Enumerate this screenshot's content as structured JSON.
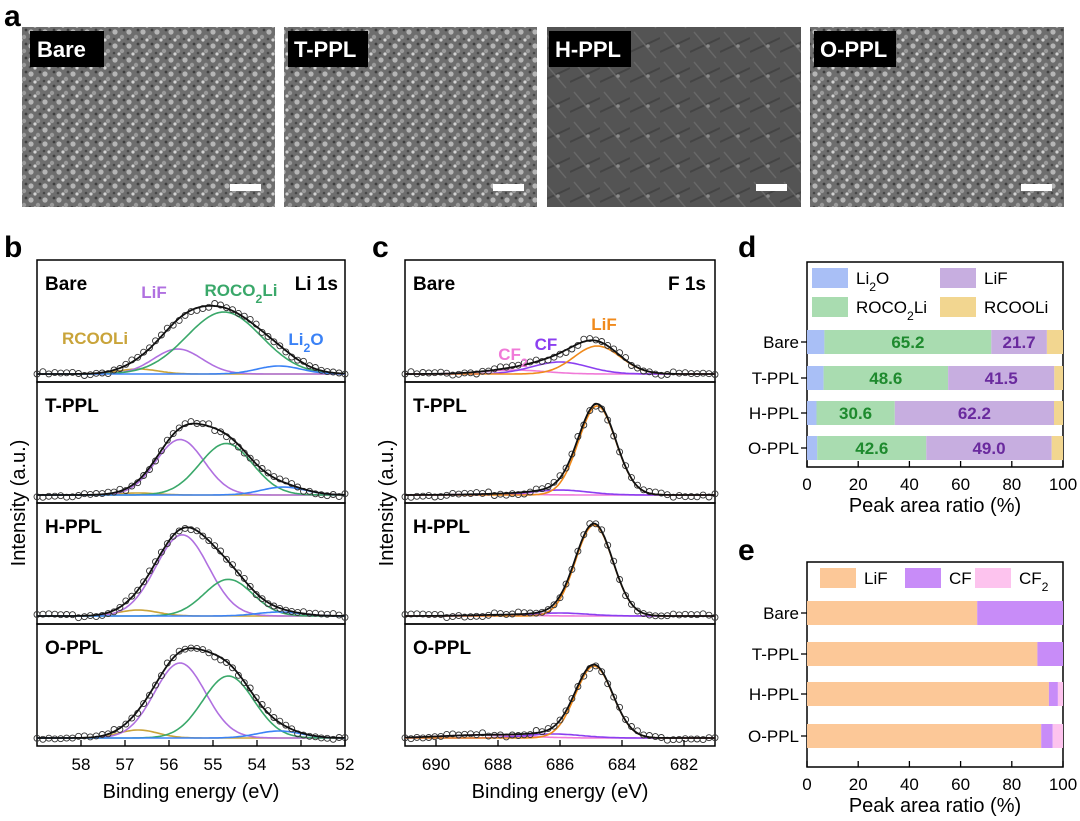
{
  "panel_letters": {
    "a": "a",
    "b": "b",
    "c": "c",
    "d": "d",
    "e": "e"
  },
  "sem_labels": [
    "Bare",
    "T-PPL",
    "H-PPL",
    "O-PPL"
  ],
  "colors": {
    "li2o": "#3b82f6",
    "rcooli": "#c9a43a",
    "liF_purple": "#b070e0",
    "roco2li": "#3aa86a",
    "liF_orange": "#f08a1c",
    "cf": "#8b3ff0",
    "cf2": "#f07ad8",
    "fit": "#111111",
    "bar_li2o": "#a9bff6",
    "bar_roco2li": "#a9dcb0",
    "bar_lif_d": "#c7aee0",
    "bar_rcooli": "#f2d690",
    "bar_lif_e": "#fcc898",
    "bar_cf": "#c88cf8",
    "bar_cf2": "#fdc3ee",
    "text_green": "#1e8a2e",
    "text_purple": "#6a2a9e"
  },
  "chart_data": [
    {
      "type": "line",
      "panel": "b",
      "title": "Li 1s",
      "xlabel": "Binding energy (eV)",
      "ylabel": "Intensity (a.u.)",
      "x_ticks": [
        "58",
        "57",
        "56",
        "55",
        "54",
        "53",
        "52"
      ],
      "xlim": [
        59,
        52
      ],
      "x_reversed": true,
      "peak_labels": [
        "LiF",
        "ROCO₂Li",
        "RCOOLi",
        "Li₂O"
      ],
      "subplots": [
        {
          "sample": "Bare",
          "peaks": [
            {
              "name": "RCOOLi",
              "center": 56.7,
              "height": 0.05,
              "width": 0.45
            },
            {
              "name": "LiF",
              "center": 55.8,
              "height": 0.25,
              "width": 0.55
            },
            {
              "name": "ROCO₂Li",
              "center": 54.75,
              "height": 0.62,
              "width": 0.85
            },
            {
              "name": "Li₂O",
              "center": 53.5,
              "height": 0.08,
              "width": 0.5
            }
          ]
        },
        {
          "sample": "T-PPL",
          "peaks": [
            {
              "name": "RCOOLi",
              "center": 56.7,
              "height": 0.02,
              "width": 0.45
            },
            {
              "name": "LiF",
              "center": 55.75,
              "height": 0.56,
              "width": 0.55
            },
            {
              "name": "ROCO₂Li",
              "center": 54.7,
              "height": 0.52,
              "width": 0.6
            },
            {
              "name": "Li₂O",
              "center": 53.4,
              "height": 0.08,
              "width": 0.5
            }
          ]
        },
        {
          "sample": "H-PPL",
          "peaks": [
            {
              "name": "RCOOLi",
              "center": 56.7,
              "height": 0.06,
              "width": 0.45
            },
            {
              "name": "LiF",
              "center": 55.7,
              "height": 0.82,
              "width": 0.6
            },
            {
              "name": "ROCO₂Li",
              "center": 54.65,
              "height": 0.37,
              "width": 0.55
            },
            {
              "name": "Li₂O",
              "center": 53.5,
              "height": 0.04,
              "width": 0.5
            }
          ]
        },
        {
          "sample": "O-PPL",
          "peaks": [
            {
              "name": "RCOOLi",
              "center": 56.7,
              "height": 0.08,
              "width": 0.45
            },
            {
              "name": "LiF",
              "center": 55.75,
              "height": 0.75,
              "width": 0.58
            },
            {
              "name": "ROCO₂Li",
              "center": 54.65,
              "height": 0.62,
              "width": 0.58
            },
            {
              "name": "Li₂O",
              "center": 53.5,
              "height": 0.07,
              "width": 0.5
            }
          ]
        }
      ]
    },
    {
      "type": "line",
      "panel": "c",
      "title": "F 1s",
      "xlabel": "Binding energy (eV)",
      "ylabel": "Intensity (a.u.)",
      "x_ticks": [
        "690",
        "688",
        "686",
        "684",
        "682"
      ],
      "xlim": [
        691,
        681
      ],
      "x_reversed": true,
      "peak_labels": [
        "CF₂",
        "CF",
        "LiF"
      ],
      "subplots": [
        {
          "sample": "Bare",
          "peaks": [
            {
              "name": "CF₂",
              "center": 687.5,
              "height": 0.04,
              "width": 1.0
            },
            {
              "name": "CF",
              "center": 686.0,
              "height": 0.12,
              "width": 0.9
            },
            {
              "name": "LiF",
              "center": 684.8,
              "height": 0.28,
              "width": 0.75
            }
          ]
        },
        {
          "sample": "T-PPL",
          "peaks": [
            {
              "name": "CF₂",
              "center": 688.0,
              "height": 0.01,
              "width": 1.0
            },
            {
              "name": "CF",
              "center": 686.0,
              "height": 0.05,
              "width": 0.9
            },
            {
              "name": "LiF",
              "center": 684.8,
              "height": 0.9,
              "width": 0.6
            }
          ]
        },
        {
          "sample": "H-PPL",
          "peaks": [
            {
              "name": "CF₂",
              "center": 688.0,
              "height": 0.01,
              "width": 1.0
            },
            {
              "name": "CF",
              "center": 686.0,
              "height": 0.03,
              "width": 0.9
            },
            {
              "name": "LiF",
              "center": 684.9,
              "height": 0.92,
              "width": 0.6
            }
          ]
        },
        {
          "sample": "O-PPL",
          "peaks": [
            {
              "name": "CF₂",
              "center": 688.5,
              "height": 0.03,
              "width": 1.3
            },
            {
              "name": "CF",
              "center": 686.2,
              "height": 0.04,
              "width": 0.9
            },
            {
              "name": "LiF",
              "center": 684.9,
              "height": 0.72,
              "width": 0.6
            }
          ]
        }
      ]
    },
    {
      "type": "bar",
      "panel": "d",
      "orientation": "horizontal",
      "stacked": true,
      "xlabel": "Peak area ratio (%)",
      "x_ticks": [
        "0",
        "20",
        "40",
        "60",
        "80",
        "100"
      ],
      "xlim": [
        0,
        100
      ],
      "categories": [
        "Bare",
        "T-PPL",
        "H-PPL",
        "O-PPL"
      ],
      "legend": [
        "Li₂O",
        "LiF",
        "ROCO₂Li",
        "RCOOLi"
      ],
      "series": [
        {
          "name": "Li₂O",
          "values": [
            6.8,
            6.5,
            3.7,
            4.0
          ]
        },
        {
          "name": "ROCO₂Li",
          "values": [
            65.2,
            48.6,
            30.6,
            42.6
          ]
        },
        {
          "name": "LiF",
          "values": [
            21.7,
            41.5,
            62.2,
            49.0
          ]
        },
        {
          "name": "RCOOLi",
          "values": [
            6.3,
            3.4,
            3.5,
            4.4
          ]
        }
      ],
      "data_labels": {
        "ROCO₂Li": [
          "65.2",
          "48.6",
          "30.6",
          "42.6"
        ],
        "LiF": [
          "21.7",
          "41.5",
          "62.2",
          "49.0"
        ]
      }
    },
    {
      "type": "bar",
      "panel": "e",
      "orientation": "horizontal",
      "stacked": true,
      "xlabel": "Peak area ratio (%)",
      "x_ticks": [
        "0",
        "20",
        "40",
        "60",
        "80",
        "100"
      ],
      "xlim": [
        0,
        100
      ],
      "categories": [
        "Bare",
        "T-PPL",
        "H-PPL",
        "O-PPL"
      ],
      "legend": [
        "LiF",
        "CF",
        "CF₂"
      ],
      "series": [
        {
          "name": "LiF",
          "values": [
            66.5,
            90,
            94.5,
            91.5
          ]
        },
        {
          "name": "CF",
          "values": [
            33.5,
            10,
            3.5,
            4.5
          ]
        },
        {
          "name": "CF₂",
          "values": [
            0,
            0,
            2,
            4
          ]
        }
      ]
    }
  ]
}
